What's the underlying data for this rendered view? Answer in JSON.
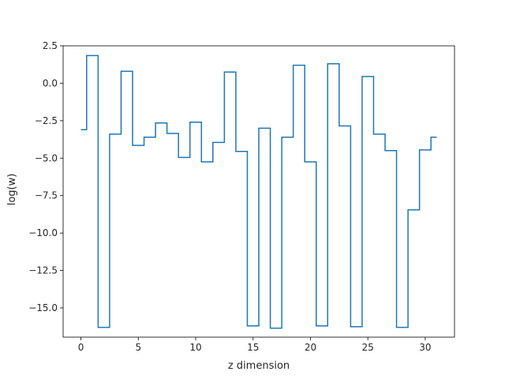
{
  "chart_data": {
    "type": "line",
    "drawstyle": "steps-mid",
    "title": "",
    "xlabel": "z dimension",
    "ylabel": "log(w)",
    "xlim": [
      -1.55,
      32.55
    ],
    "ylim": [
      -16.95,
      2.5
    ],
    "grid": false,
    "color": "#1f77b4",
    "xticks": [
      0,
      5,
      10,
      15,
      20,
      25,
      30
    ],
    "yticks": [
      2.5,
      0.0,
      -2.5,
      -5.0,
      -7.5,
      -10.0,
      -12.5,
      -15.0
    ],
    "xtick_labels": [
      "0",
      "5",
      "10",
      "15",
      "20",
      "25",
      "30"
    ],
    "ytick_labels": [
      "2.5",
      "0.0",
      "−2.5",
      "−5.0",
      "−7.5",
      "−10.0",
      "−12.5",
      "−15.0"
    ],
    "series": [
      {
        "x": [
          0,
          1,
          2,
          3,
          4,
          5,
          6,
          7,
          8,
          9,
          10,
          11,
          12,
          13,
          14,
          15,
          16,
          17,
          18,
          19,
          20,
          21,
          22,
          23,
          24,
          25,
          26,
          27,
          28,
          29,
          30,
          31
        ],
        "values": [
          -3.1,
          1.85,
          -16.3,
          -3.4,
          0.8,
          -4.15,
          -3.6,
          -2.65,
          -3.35,
          -4.95,
          -2.6,
          -5.25,
          -3.95,
          0.75,
          -4.55,
          -16.2,
          -3.0,
          -16.35,
          -3.6,
          1.2,
          -5.25,
          -16.2,
          1.3,
          -2.85,
          -16.25,
          0.45,
          -3.4,
          -4.5,
          -16.3,
          -8.45,
          -4.45,
          -3.6
        ]
      }
    ]
  }
}
